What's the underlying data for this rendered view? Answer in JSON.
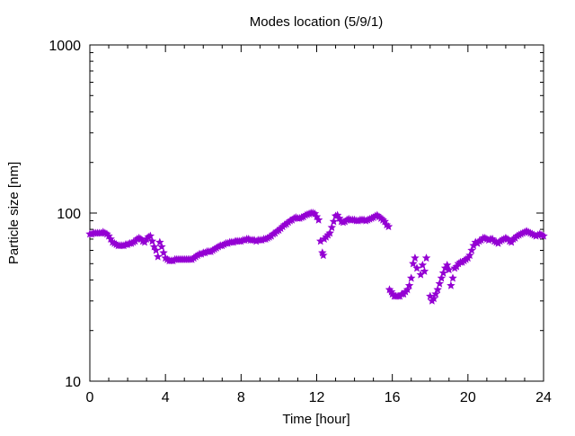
{
  "chart_data": {
    "type": "scatter",
    "title": "Modes location (5/9/1)",
    "xlabel": "Time [hour]",
    "ylabel": "Particle size [nm]",
    "xlim": [
      0,
      24
    ],
    "ylim": [
      10,
      1000
    ],
    "yscale": "log",
    "xticks": [
      0,
      4,
      8,
      12,
      16,
      20,
      24
    ],
    "xtick_labels": [
      "0",
      "4",
      "8",
      "12",
      "16",
      "20",
      "24"
    ],
    "yticks": [
      10,
      100,
      1000
    ],
    "ytick_labels": [
      "10",
      "100",
      "1000"
    ],
    "grid": false,
    "marker_color": "#9400d3",
    "points": [
      [
        0.0,
        75
      ],
      [
        0.1,
        75
      ],
      [
        0.2,
        76
      ],
      [
        0.3,
        76
      ],
      [
        0.4,
        76
      ],
      [
        0.5,
        76
      ],
      [
        0.6,
        76
      ],
      [
        0.7,
        77
      ],
      [
        0.8,
        76
      ],
      [
        0.9,
        75
      ],
      [
        1.0,
        73
      ],
      [
        1.1,
        70
      ],
      [
        1.2,
        67
      ],
      [
        1.3,
        66
      ],
      [
        1.4,
        65
      ],
      [
        1.5,
        64
      ],
      [
        1.6,
        64
      ],
      [
        1.7,
        64
      ],
      [
        1.8,
        64
      ],
      [
        1.9,
        65
      ],
      [
        2.0,
        65
      ],
      [
        2.1,
        66
      ],
      [
        2.2,
        66
      ],
      [
        2.3,
        67
      ],
      [
        2.4,
        68
      ],
      [
        2.5,
        70
      ],
      [
        2.6,
        71
      ],
      [
        2.7,
        70
      ],
      [
        2.8,
        68
      ],
      [
        2.9,
        67
      ],
      [
        3.0,
        70
      ],
      [
        3.1,
        72
      ],
      [
        3.2,
        73
      ],
      [
        3.3,
        68
      ],
      [
        3.4,
        63
      ],
      [
        3.5,
        60
      ],
      [
        3.6,
        55
      ],
      [
        3.7,
        67
      ],
      [
        3.8,
        63
      ],
      [
        3.9,
        58
      ],
      [
        4.0,
        54
      ],
      [
        4.1,
        53
      ],
      [
        4.2,
        52
      ],
      [
        4.3,
        52
      ],
      [
        4.4,
        52
      ],
      [
        4.5,
        53
      ],
      [
        4.6,
        53
      ],
      [
        4.7,
        53
      ],
      [
        4.8,
        53
      ],
      [
        4.9,
        53
      ],
      [
        5.0,
        53
      ],
      [
        5.1,
        53
      ],
      [
        5.2,
        53
      ],
      [
        5.3,
        53
      ],
      [
        5.4,
        53
      ],
      [
        5.5,
        54
      ],
      [
        5.6,
        55
      ],
      [
        5.7,
        56
      ],
      [
        5.8,
        57
      ],
      [
        5.9,
        57
      ],
      [
        6.0,
        58
      ],
      [
        6.1,
        58
      ],
      [
        6.2,
        59
      ],
      [
        6.3,
        59
      ],
      [
        6.4,
        59
      ],
      [
        6.5,
        60
      ],
      [
        6.6,
        61
      ],
      [
        6.7,
        62
      ],
      [
        6.8,
        63
      ],
      [
        6.9,
        64
      ],
      [
        7.0,
        64
      ],
      [
        7.1,
        65
      ],
      [
        7.2,
        66
      ],
      [
        7.3,
        66
      ],
      [
        7.4,
        67
      ],
      [
        7.5,
        67
      ],
      [
        7.6,
        67
      ],
      [
        7.7,
        68
      ],
      [
        7.8,
        68
      ],
      [
        7.9,
        68
      ],
      [
        8.0,
        68
      ],
      [
        8.1,
        69
      ],
      [
        8.2,
        69
      ],
      [
        8.3,
        70
      ],
      [
        8.4,
        70
      ],
      [
        8.5,
        69
      ],
      [
        8.6,
        69
      ],
      [
        8.7,
        69
      ],
      [
        8.8,
        68
      ],
      [
        8.9,
        69
      ],
      [
        9.0,
        69
      ],
      [
        9.1,
        69
      ],
      [
        9.2,
        70
      ],
      [
        9.3,
        70
      ],
      [
        9.4,
        71
      ],
      [
        9.5,
        72
      ],
      [
        9.6,
        73
      ],
      [
        9.7,
        75
      ],
      [
        9.8,
        76
      ],
      [
        9.9,
        78
      ],
      [
        10.0,
        79
      ],
      [
        10.1,
        81
      ],
      [
        10.2,
        83
      ],
      [
        10.3,
        85
      ],
      [
        10.4,
        86
      ],
      [
        10.5,
        88
      ],
      [
        10.6,
        90
      ],
      [
        10.7,
        91
      ],
      [
        10.8,
        93
      ],
      [
        10.9,
        94
      ],
      [
        11.0,
        93
      ],
      [
        11.1,
        93
      ],
      [
        11.2,
        94
      ],
      [
        11.3,
        95
      ],
      [
        11.4,
        97
      ],
      [
        11.5,
        98
      ],
      [
        11.6,
        99
      ],
      [
        11.7,
        100
      ],
      [
        11.8,
        100
      ],
      [
        11.9,
        99
      ],
      [
        12.0,
        95
      ],
      [
        12.1,
        91
      ],
      [
        12.2,
        68
      ],
      [
        12.3,
        58
      ],
      [
        12.35,
        56
      ],
      [
        12.4,
        70
      ],
      [
        12.5,
        72
      ],
      [
        12.6,
        74
      ],
      [
        12.7,
        76
      ],
      [
        12.8,
        82
      ],
      [
        12.9,
        89
      ],
      [
        13.0,
        96
      ],
      [
        13.1,
        97
      ],
      [
        13.2,
        93
      ],
      [
        13.3,
        89
      ],
      [
        13.4,
        88
      ],
      [
        13.5,
        89
      ],
      [
        13.6,
        91
      ],
      [
        13.7,
        92
      ],
      [
        13.8,
        91
      ],
      [
        13.9,
        91
      ],
      [
        14.0,
        91
      ],
      [
        14.1,
        90
      ],
      [
        14.2,
        90
      ],
      [
        14.3,
        91
      ],
      [
        14.4,
        91
      ],
      [
        14.5,
        91
      ],
      [
        14.6,
        90
      ],
      [
        14.7,
        91
      ],
      [
        14.8,
        92
      ],
      [
        14.9,
        93
      ],
      [
        15.0,
        94
      ],
      [
        15.1,
        96
      ],
      [
        15.2,
        97
      ],
      [
        15.3,
        95
      ],
      [
        15.4,
        93
      ],
      [
        15.5,
        91
      ],
      [
        15.6,
        89
      ],
      [
        15.7,
        85
      ],
      [
        15.8,
        83
      ],
      [
        15.85,
        35
      ],
      [
        15.95,
        34
      ],
      [
        16.0,
        33
      ],
      [
        16.1,
        32
      ],
      [
        16.2,
        32
      ],
      [
        16.3,
        32
      ],
      [
        16.4,
        32
      ],
      [
        16.5,
        33
      ],
      [
        16.6,
        33
      ],
      [
        16.7,
        34
      ],
      [
        16.8,
        35
      ],
      [
        16.9,
        37
      ],
      [
        17.0,
        41
      ],
      [
        17.1,
        50
      ],
      [
        17.2,
        54
      ],
      [
        17.3,
        47
      ],
      [
        17.5,
        43
      ],
      [
        17.6,
        49
      ],
      [
        17.7,
        45
      ],
      [
        17.8,
        54
      ],
      [
        18.0,
        32
      ],
      [
        18.1,
        30
      ],
      [
        18.2,
        31
      ],
      [
        18.3,
        33
      ],
      [
        18.4,
        35
      ],
      [
        18.5,
        38
      ],
      [
        18.6,
        41
      ],
      [
        18.7,
        44
      ],
      [
        18.8,
        47
      ],
      [
        18.9,
        49
      ],
      [
        19.0,
        46
      ],
      [
        19.1,
        37
      ],
      [
        19.2,
        41
      ],
      [
        19.3,
        47
      ],
      [
        19.4,
        48
      ],
      [
        19.5,
        50
      ],
      [
        19.6,
        51
      ],
      [
        19.7,
        51
      ],
      [
        19.8,
        52
      ],
      [
        19.9,
        53
      ],
      [
        20.0,
        54
      ],
      [
        20.1,
        56
      ],
      [
        20.2,
        60
      ],
      [
        20.3,
        64
      ],
      [
        20.4,
        67
      ],
      [
        20.5,
        66
      ],
      [
        20.6,
        68
      ],
      [
        20.7,
        69
      ],
      [
        20.8,
        71
      ],
      [
        20.9,
        71
      ],
      [
        21.0,
        70
      ],
      [
        21.1,
        69
      ],
      [
        21.2,
        70
      ],
      [
        21.3,
        70
      ],
      [
        21.4,
        68
      ],
      [
        21.5,
        67
      ],
      [
        21.6,
        66
      ],
      [
        21.7,
        68
      ],
      [
        21.8,
        69
      ],
      [
        21.9,
        70
      ],
      [
        22.0,
        71
      ],
      [
        22.1,
        70
      ],
      [
        22.2,
        68
      ],
      [
        22.3,
        67
      ],
      [
        22.4,
        70
      ],
      [
        22.5,
        71
      ],
      [
        22.6,
        73
      ],
      [
        22.7,
        74
      ],
      [
        22.8,
        75
      ],
      [
        22.9,
        76
      ],
      [
        23.0,
        77
      ],
      [
        23.1,
        78
      ],
      [
        23.2,
        77
      ],
      [
        23.3,
        76
      ],
      [
        23.4,
        75
      ],
      [
        23.5,
        74
      ],
      [
        23.6,
        73
      ],
      [
        23.7,
        74
      ],
      [
        23.8,
        75
      ],
      [
        23.9,
        74
      ],
      [
        24.0,
        73
      ]
    ]
  }
}
